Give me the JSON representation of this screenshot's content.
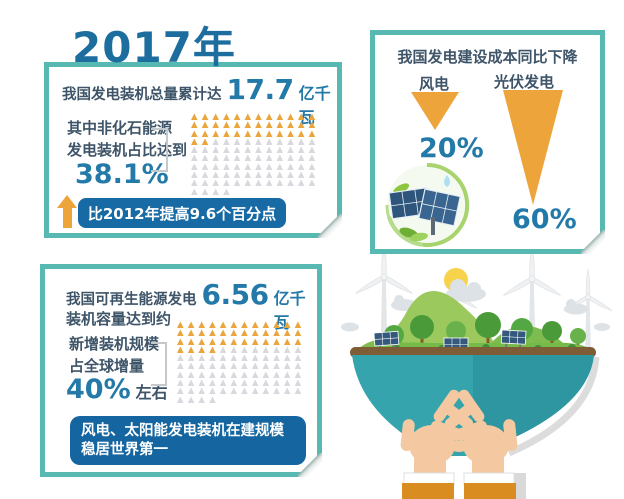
{
  "title": "2017年",
  "panel_installed": {
    "line1_label": "我国发电装机总量累计达",
    "line1_value": "17.7",
    "line1_unit": "亿千瓦",
    "share_label_line1": "其中非化石能源",
    "share_label_line2": "发电装机占比达到",
    "share_value": "38.1%",
    "grid": {
      "columns": 12,
      "total": 112,
      "filled": 38
    },
    "note": "比2012年提高9.6个百分点"
  },
  "panel_costs": {
    "header": "我国发电建设成本同比下降",
    "wind_label": "风电",
    "wind_value": "20%",
    "solar_label": "光伏发电",
    "solar_value": "60%"
  },
  "panel_renewable": {
    "line1_label": "我国可再生能源发电",
    "line1_value": "6.56",
    "line1_unit": "亿千瓦",
    "line2_label": "装机容量达到约",
    "share_label_line1": "新增装机规模",
    "share_label_line2": "占全球增量",
    "share_value": "40%",
    "share_suffix": "左右",
    "grid": {
      "columns": 12,
      "total": 112,
      "filled": 40
    },
    "note_line1": "风电、太阳能发电装机在建规模",
    "note_line2": "稳居世界第一"
  },
  "colors": {
    "teal_border": "#57b9b1",
    "headline_blue": "#1d6d9e",
    "number_blue": "#2379a8",
    "text_dark": "#3e5468",
    "pill_blue": "#176aa3",
    "note_blue": "#1565a0",
    "arrow_orange": "#eda53b",
    "triangle_filled": "#eaa63c",
    "triangle_empty": "#d9d8de"
  },
  "chart_data": [
    {
      "type": "pictograph",
      "title": "我国发电装机总量累计达17.7亿千瓦",
      "series": [
        {
          "name": "非化石能源发电装机占比",
          "value": 38.1
        }
      ],
      "unit": "%",
      "icon": "triangle",
      "icon_grid": {
        "columns": 12,
        "total": 112,
        "filled": 38
      },
      "annotation": "比2012年提高9.6个百分点"
    },
    {
      "type": "bar",
      "title": "我国发电建设成本同比下降",
      "categories": [
        "风电",
        "光伏发电"
      ],
      "values": [
        20,
        60
      ],
      "unit": "%",
      "style": "downward-arrows"
    },
    {
      "type": "pictograph",
      "title": "我国可再生能源发电装机容量达到约6.56亿千瓦",
      "series": [
        {
          "name": "新增装机规模占全球增量",
          "value": 40
        }
      ],
      "unit": "%",
      "icon": "triangle",
      "icon_grid": {
        "columns": 12,
        "total": 112,
        "filled": 40
      },
      "annotation": "风电、太阳能发电装机在建规模稳居世界第一"
    }
  ]
}
